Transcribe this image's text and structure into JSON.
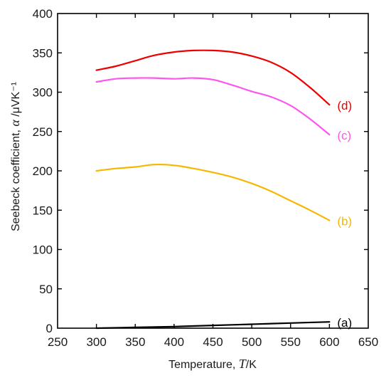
{
  "chart_data": {
    "type": "line",
    "xlabel_prefix": "Temperature, ",
    "xlabel_symbol": "T",
    "xlabel_unit": "/K",
    "ylabel_prefix": "Seebeck coefficient, ",
    "ylabel_symbol": "α",
    "ylabel_unit": " /μVK⁻¹",
    "xlim": [
      250,
      650
    ],
    "ylim": [
      0,
      400
    ],
    "xticks": [
      250,
      300,
      350,
      400,
      450,
      500,
      550,
      600,
      650
    ],
    "yticks": [
      0,
      50,
      100,
      150,
      200,
      250,
      300,
      350,
      400
    ],
    "grid": false,
    "series": [
      {
        "name": "(a)",
        "color": "#000000",
        "x": [
          300,
          350,
          400,
          450,
          500,
          550,
          600
        ],
        "y": [
          0,
          1,
          2,
          3.5,
          5,
          6.5,
          8
        ]
      },
      {
        "name": "(b)",
        "color": "#f5b800",
        "x": [
          300,
          325,
          350,
          375,
          400,
          425,
          450,
          475,
          500,
          525,
          550,
          575,
          600
        ],
        "y": [
          200,
          203,
          205,
          208,
          207,
          203,
          198,
          192,
          184,
          174,
          162,
          150,
          137
        ]
      },
      {
        "name": "(c)",
        "color": "#ff55ee",
        "x": [
          300,
          325,
          350,
          375,
          400,
          425,
          450,
          475,
          500,
          525,
          550,
          575,
          600
        ],
        "y": [
          313,
          317,
          318,
          318,
          317,
          318,
          316,
          309,
          301,
          294,
          283,
          266,
          246
        ]
      },
      {
        "name": "(d)",
        "color": "#ee0000",
        "x": [
          300,
          325,
          350,
          375,
          400,
          425,
          450,
          475,
          500,
          525,
          550,
          575,
          600
        ],
        "y": [
          328,
          333,
          340,
          347,
          351,
          353,
          353,
          351,
          346,
          338,
          325,
          306,
          284
        ]
      }
    ]
  }
}
